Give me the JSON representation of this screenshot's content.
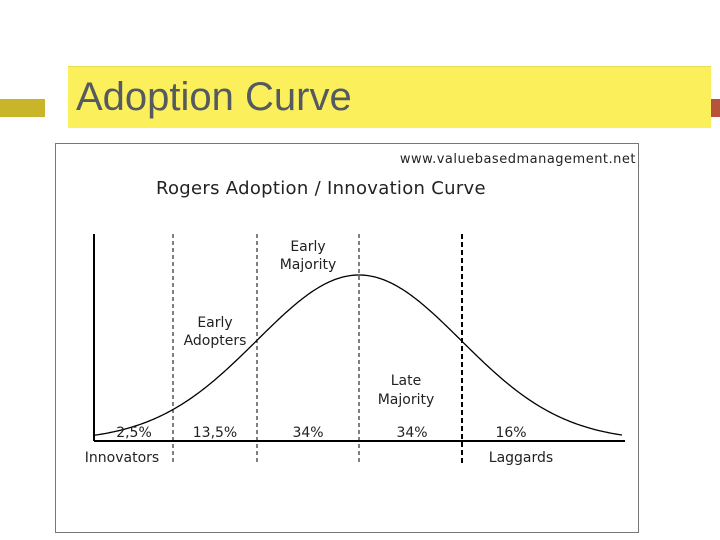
{
  "slide": {
    "title": "Adoption Curve"
  },
  "diagram": {
    "source_url": "www.valuebasedmanagement.net",
    "heading": "Rogers Adoption / Innovation Curve",
    "segments": [
      {
        "label_lines": [
          "Innovators"
        ],
        "share": "2,5%"
      },
      {
        "label_lines": [
          "Early",
          "Adopters"
        ],
        "share": "13,5%"
      },
      {
        "label_lines": [
          "Early",
          "Majority"
        ],
        "share": "34%"
      },
      {
        "label_lines": [
          "Late",
          "Majority"
        ],
        "share": "34%"
      },
      {
        "label_lines": [
          "Laggards"
        ],
        "share": "16%"
      }
    ]
  },
  "colors": {
    "title_band": "#fbef5c",
    "title_text": "#555a60",
    "accent_left": "#c9b52a",
    "accent_right": "#b5543a"
  }
}
